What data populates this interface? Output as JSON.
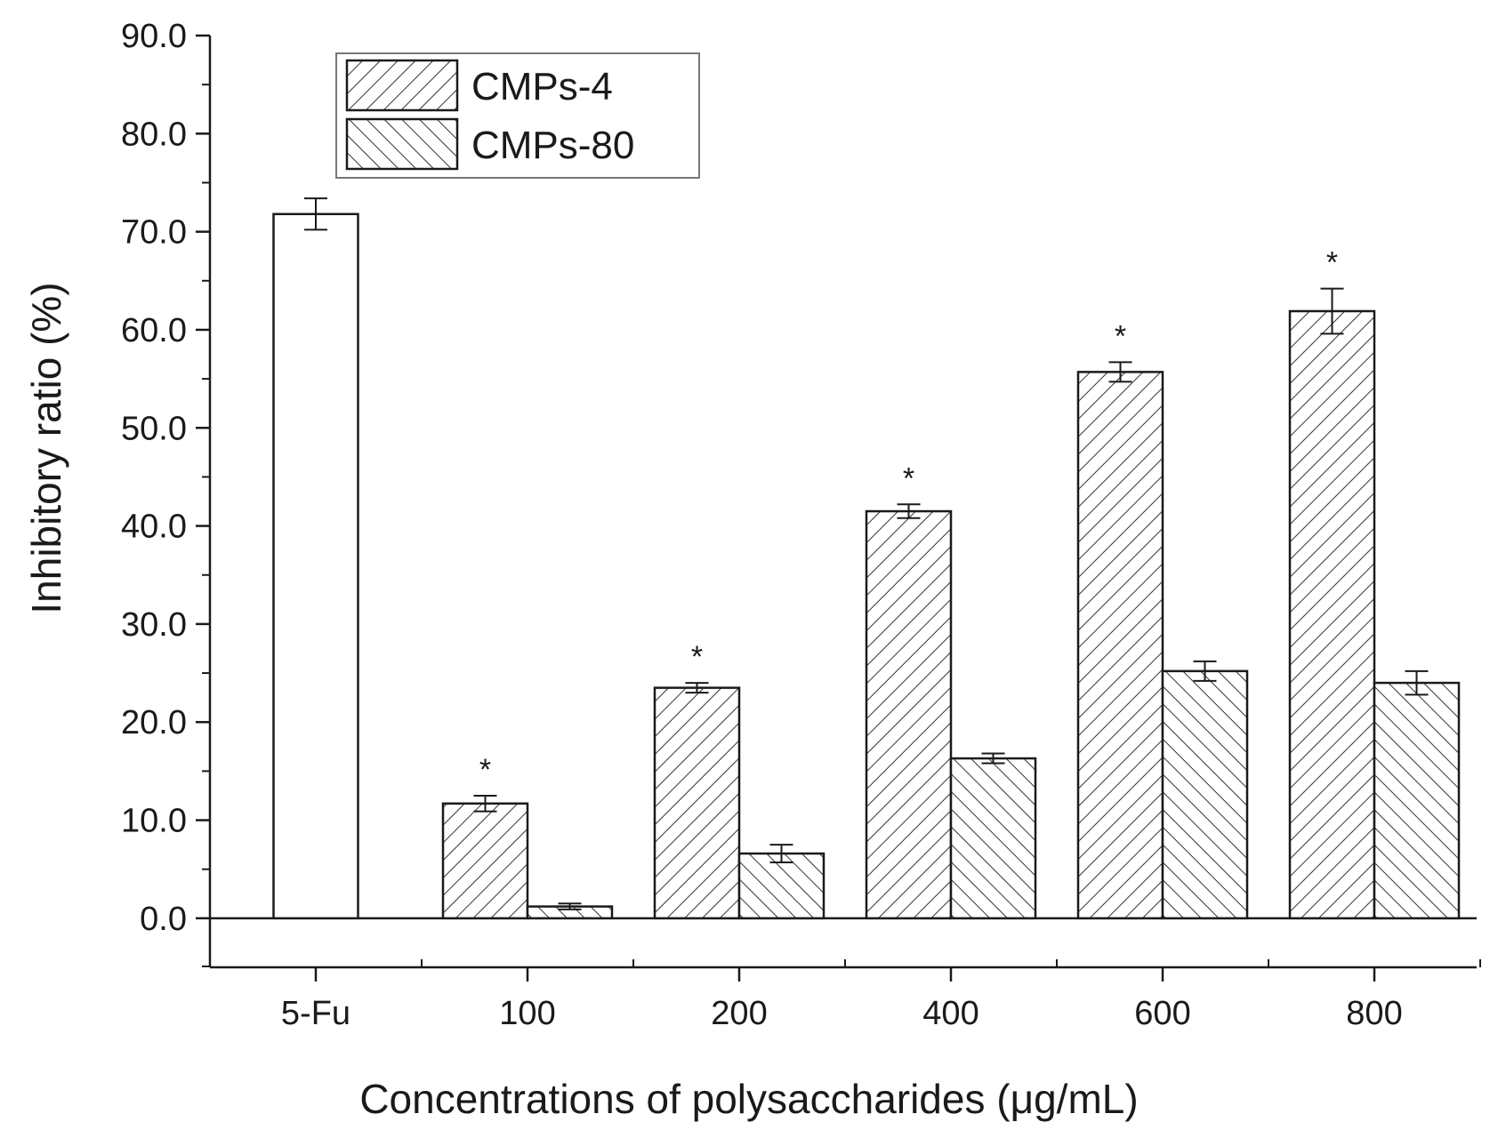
{
  "chart_data": {
    "type": "bar",
    "xlabel": "Concentrations of polysaccharides (μg/mL)",
    "ylabel": "Inhibitory ratio (%)",
    "ylim": [
      -5,
      90
    ],
    "yticks": [
      "0.0",
      "10.0",
      "20.0",
      "30.0",
      "40.0",
      "50.0",
      "60.0",
      "70.0",
      "80.0",
      "90.0"
    ],
    "categories": [
      "5-Fu",
      "100",
      "200",
      "400",
      "600",
      "800"
    ],
    "legend_position": "top-left",
    "control": {
      "category": "5-Fu",
      "value": 71.8,
      "error": 1.6
    },
    "series": [
      {
        "name": "CMPs-4",
        "pattern": "forward-hatch",
        "values": [
          null,
          11.7,
          23.5,
          41.5,
          55.7,
          61.9
        ],
        "errors": [
          null,
          0.8,
          0.5,
          0.7,
          1.0,
          2.3
        ],
        "significance": [
          null,
          "*",
          "*",
          "*",
          "*",
          "*"
        ]
      },
      {
        "name": "CMPs-80",
        "pattern": "backward-hatch",
        "values": [
          null,
          1.2,
          6.6,
          16.3,
          25.2,
          24.0
        ],
        "errors": [
          null,
          0.3,
          0.9,
          0.5,
          1.0,
          1.2
        ],
        "significance": [
          null,
          null,
          null,
          null,
          null,
          null
        ]
      }
    ],
    "colors": {
      "stroke": "#1a1a1a",
      "fill": "#ffffff"
    }
  }
}
